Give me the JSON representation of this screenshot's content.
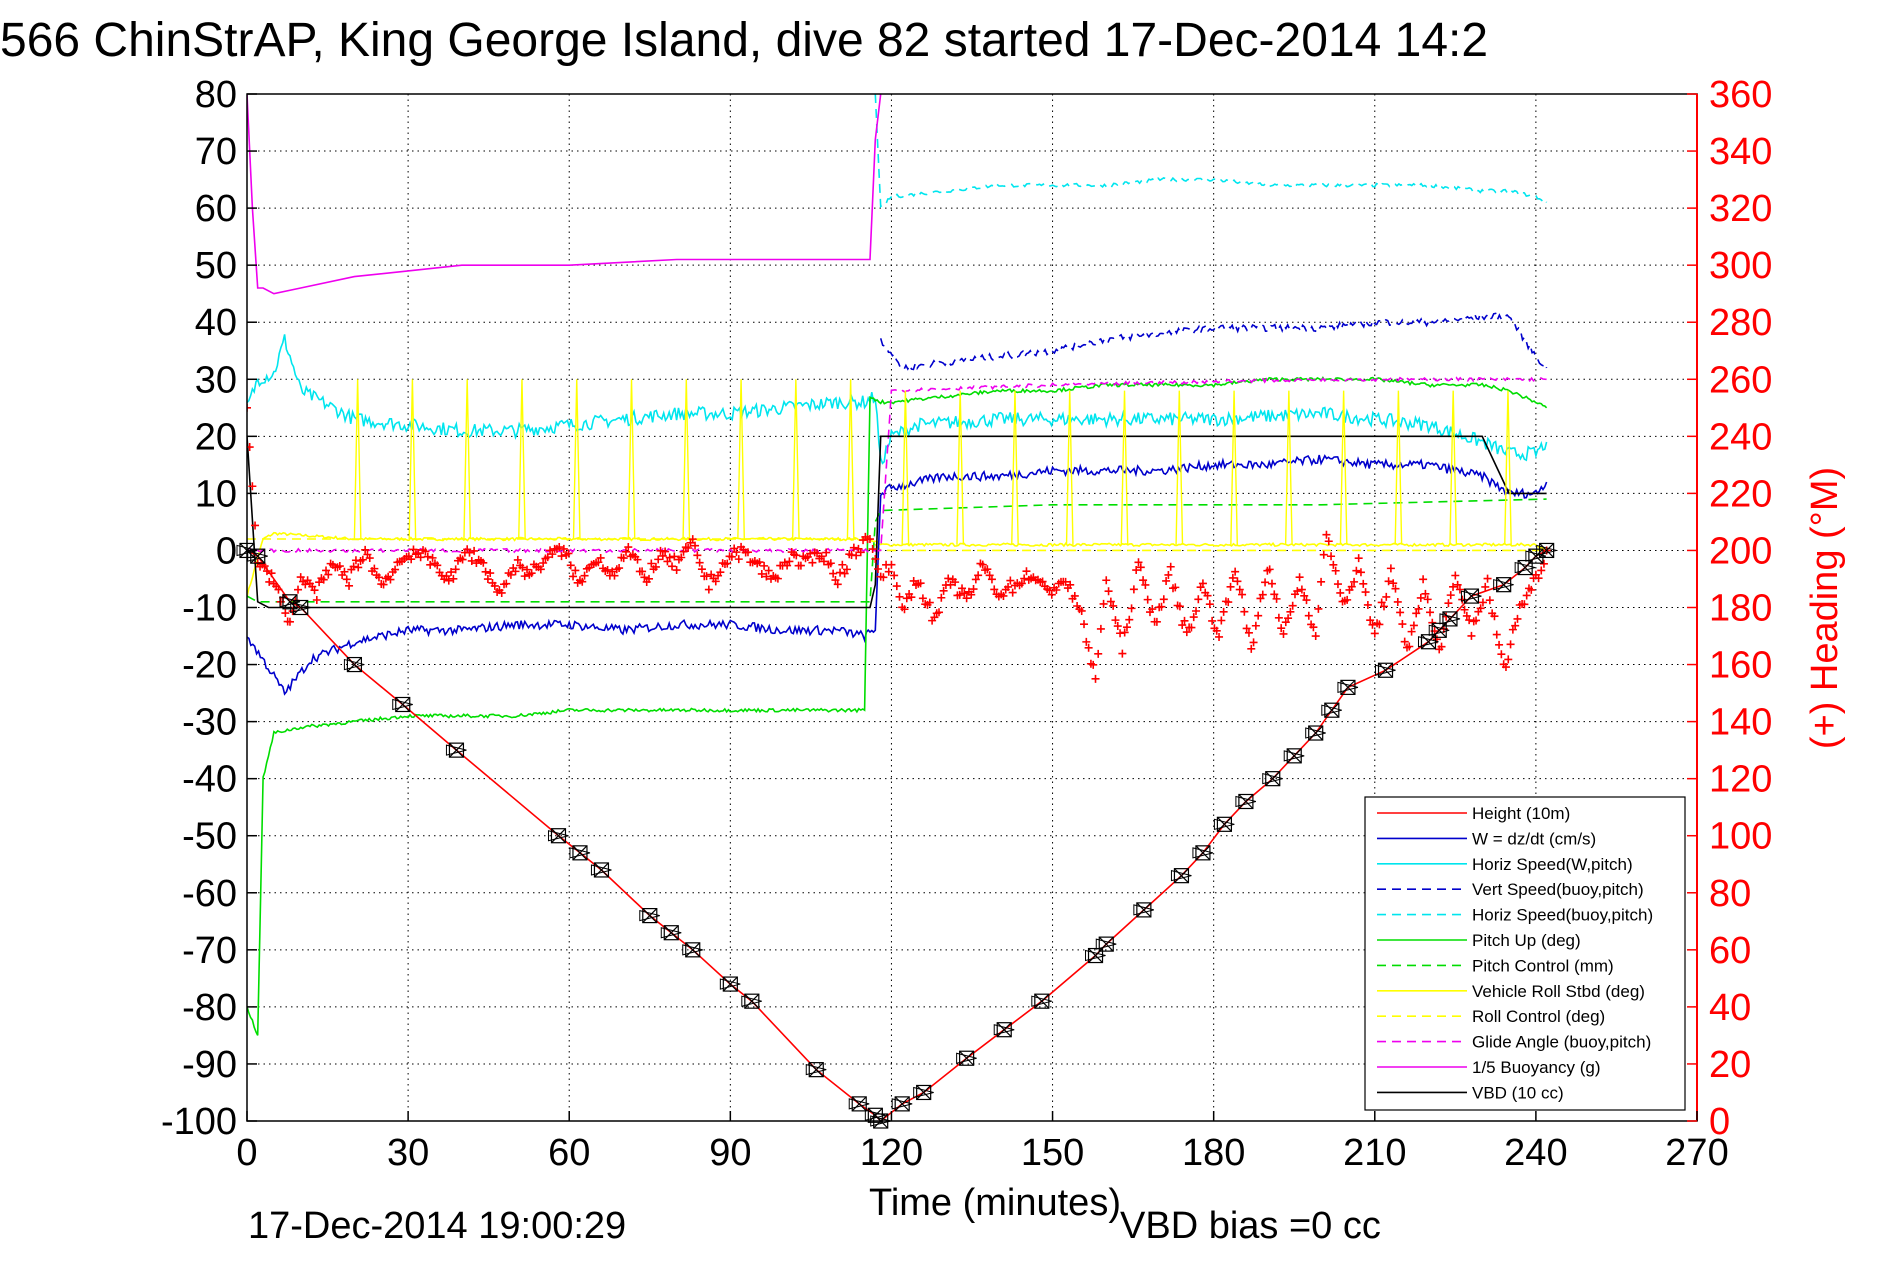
{
  "chart_data": {
    "type": "line",
    "title": "566 ChinStrAP, King George Island, dive 82 started 17-Dec-2014 14:2",
    "xlabel": "Time (minutes)",
    "ylabel_right": "(+) Heading (°M)",
    "xlim": [
      0,
      270
    ],
    "ylim": [
      -100,
      80
    ],
    "ylim_right": [
      0,
      360
    ],
    "x_ticks": [
      0,
      30,
      60,
      90,
      120,
      150,
      180,
      210,
      240,
      270
    ],
    "y_ticks": [
      80,
      70,
      60,
      50,
      40,
      30,
      20,
      10,
      0,
      -10,
      -20,
      -30,
      -40,
      -50,
      -60,
      -70,
      -80,
      -90,
      -100
    ],
    "y_ticks_right": [
      360,
      340,
      320,
      300,
      280,
      260,
      240,
      220,
      200,
      180,
      160,
      140,
      120,
      100,
      80,
      60,
      40,
      20,
      0
    ],
    "grid": true,
    "legend_position": "bottom-right",
    "footer_left": "17-Dec-2014 19:00:29",
    "footer_right": "VBD bias =0 cc",
    "colors": {
      "red": "#ff0000",
      "blue": "#0000cc",
      "cyan": "#00e5ee",
      "green": "#00dd00",
      "yellow": "#ffff00",
      "magenta": "#ee00ee",
      "black": "#000000"
    },
    "series": [
      {
        "name": "Height (10m)",
        "color": "#ff0000",
        "style": "solid",
        "marker": "x-box",
        "x": [
          0,
          2,
          8,
          10,
          20,
          29,
          39,
          58,
          62,
          66,
          75,
          79,
          83,
          90,
          94,
          106,
          114,
          117,
          118,
          122,
          126,
          134,
          141,
          148,
          158,
          160,
          167,
          174,
          178,
          182,
          186,
          191,
          195,
          199,
          202,
          205,
          212,
          220,
          222,
          224,
          228,
          234,
          238,
          240,
          242
        ],
        "y": [
          0,
          -1,
          -9,
          -10,
          -20,
          -27,
          -35,
          -50,
          -53,
          -56,
          -64,
          -67,
          -70,
          -76,
          -79,
          -91,
          -97,
          -99,
          -100,
          -97,
          -95,
          -89,
          -84,
          -79,
          -71,
          -69,
          -63,
          -57,
          -53,
          -48,
          -44,
          -40,
          -36,
          -32,
          -28,
          -24,
          -21,
          -16,
          -14,
          -12,
          -8,
          -6,
          -3,
          -1,
          0
        ]
      },
      {
        "name": "W = dz/dt (cm/s)",
        "color": "#0000cc",
        "style": "solid",
        "x": [
          0,
          5,
          7,
          12,
          20,
          30,
          40,
          50,
          60,
          70,
          80,
          90,
          100,
          110,
          115,
          117,
          118,
          120,
          125,
          130,
          140,
          150,
          160,
          170,
          180,
          190,
          200,
          210,
          220,
          230,
          235,
          240,
          242
        ],
        "y": [
          -15,
          -22,
          -25,
          -19,
          -16,
          -14,
          -14,
          -13,
          -13,
          -14,
          -13,
          -13,
          -14,
          -14,
          -15,
          -14,
          10,
          11,
          12,
          13,
          13,
          14,
          14,
          14,
          15,
          15,
          16,
          15,
          15,
          13,
          10,
          10,
          12
        ]
      },
      {
        "name": "Horiz Speed(W,pitch)",
        "color": "#00e5ee",
        "style": "solid",
        "x": [
          0,
          2,
          5,
          7,
          10,
          20,
          30,
          40,
          50,
          60,
          70,
          80,
          90,
          100,
          110,
          115,
          117,
          118,
          120,
          125,
          140,
          160,
          180,
          200,
          210,
          220,
          230,
          235,
          240,
          242
        ],
        "y": [
          25,
          30,
          31,
          37,
          28,
          23,
          22,
          21,
          21,
          22,
          23,
          24,
          24,
          25,
          26,
          26,
          27,
          15,
          20,
          22,
          23,
          23,
          23,
          24,
          23,
          22,
          19,
          17,
          17,
          19
        ]
      },
      {
        "name": "Vert Speed(buoy,pitch)",
        "color": "#0000cc",
        "style": "dashed",
        "x": [
          118,
          122,
          130,
          140,
          150,
          160,
          170,
          180,
          190,
          200,
          210,
          220,
          230,
          235,
          240,
          242
        ],
        "y": [
          37,
          32,
          33,
          34,
          35,
          37,
          38,
          39,
          39,
          39,
          40,
          40,
          41,
          41,
          34,
          32
        ]
      },
      {
        "name": "Horiz Speed(buoy,pitch)",
        "color": "#00e5ee",
        "style": "dashed",
        "x": [
          117,
          118,
          120,
          130,
          140,
          150,
          160,
          170,
          180,
          190,
          200,
          210,
          220,
          230,
          235,
          240,
          242
        ],
        "y": [
          80,
          60,
          62,
          63,
          64,
          64,
          64,
          65,
          65,
          64,
          64,
          64,
          64,
          63,
          63,
          62,
          61
        ]
      },
      {
        "name": "Pitch Up (deg)",
        "color": "#00dd00",
        "style": "solid",
        "x": [
          0,
          2,
          3,
          5,
          10,
          20,
          30,
          40,
          50,
          60,
          70,
          80,
          90,
          100,
          110,
          115,
          116,
          118,
          120,
          130,
          140,
          150,
          160,
          170,
          180,
          190,
          200,
          210,
          220,
          230,
          235,
          240,
          242
        ],
        "y": [
          -80,
          -85,
          -40,
          -32,
          -31,
          -30,
          -29,
          -29,
          -29,
          -28,
          -28,
          -28,
          -28,
          -28,
          -28,
          -28,
          27,
          26,
          26,
          27,
          28,
          28,
          29,
          29,
          29,
          30,
          30,
          30,
          29,
          29,
          28,
          26,
          25
        ]
      },
      {
        "name": "Pitch Control (mm)",
        "color": "#00dd00",
        "style": "dashed",
        "x": [
          0,
          2,
          5,
          116,
          117,
          118,
          150,
          200,
          242
        ],
        "y": [
          -8,
          -9,
          -9,
          -9,
          5,
          7,
          8,
          8,
          9
        ]
      },
      {
        "name": "Vehicle Roll Stbd (deg)",
        "color": "#ffff00",
        "style": "solid",
        "x": [
          0,
          3,
          5,
          20,
          40,
          60,
          80,
          100,
          116,
          118,
          130,
          150,
          170,
          190,
          210,
          230,
          240,
          242
        ],
        "y": [
          -8,
          2,
          3,
          2,
          2,
          2,
          2,
          2,
          2,
          1,
          1,
          1,
          1,
          1,
          1,
          1,
          1,
          0
        ]
      },
      {
        "name": "Roll Control (deg)",
        "color": "#ffff00",
        "style": "dashed",
        "x": [
          0,
          5,
          116,
          118,
          242
        ],
        "y": [
          2,
          2,
          2,
          0,
          0
        ]
      },
      {
        "name": "Glide Angle (buoy,pitch)",
        "color": "#ee00ee",
        "style": "dashed",
        "x": [
          0,
          5,
          118,
          120,
          150,
          200,
          242
        ],
        "y": [
          0,
          0,
          0,
          28,
          29,
          30,
          30
        ]
      },
      {
        "name": "1/5 Buoyancy (g)",
        "color": "#ee00ee",
        "style": "solid",
        "x": [
          0,
          1,
          2,
          3,
          5,
          10,
          20,
          30,
          40,
          60,
          80,
          100,
          116,
          117,
          118
        ],
        "y": [
          80,
          60,
          46,
          46,
          45,
          46,
          48,
          49,
          50,
          50,
          51,
          51,
          51,
          72,
          80
        ]
      },
      {
        "name": "VBD (10 cc)",
        "color": "#000000",
        "style": "solid",
        "x": [
          0,
          2,
          4,
          116,
          117,
          118,
          120,
          150,
          200,
          230,
          235,
          242
        ],
        "y": [
          20,
          -9,
          -10,
          -10,
          -6,
          20,
          20,
          20,
          20,
          20,
          10,
          10
        ]
      }
    ],
    "heading": {
      "name": "Heading",
      "axis": "right",
      "color": "#ff0000",
      "marker": "+",
      "x": [
        0,
        2,
        5,
        8,
        10,
        13,
        16,
        19,
        22,
        25,
        28,
        31,
        35,
        38,
        41,
        44,
        47,
        50,
        53,
        56,
        59,
        62,
        65,
        68,
        71,
        74,
        77,
        80,
        83,
        86,
        89,
        92,
        95,
        98,
        101,
        104,
        107,
        110,
        113,
        116,
        118,
        120,
        122,
        125,
        128,
        131,
        134,
        137,
        140,
        143,
        146,
        149,
        152,
        155,
        158,
        160,
        163,
        166,
        169,
        172,
        175,
        178,
        181,
        184,
        187,
        190,
        193,
        196,
        199,
        201,
        204,
        207,
        210,
        213,
        216,
        219,
        222,
        225,
        228,
        231,
        234,
        237,
        240,
        242
      ],
      "y": [
        250,
        195,
        190,
        175,
        190,
        185,
        195,
        190,
        200,
        188,
        195,
        200,
        195,
        190,
        200,
        195,
        185,
        195,
        192,
        198,
        200,
        188,
        198,
        192,
        200,
        190,
        198,
        195,
        202,
        188,
        196,
        200,
        195,
        190,
        198,
        195,
        200,
        190,
        200,
        204,
        190,
        195,
        180,
        190,
        175,
        190,
        182,
        195,
        185,
        188,
        192,
        185,
        190,
        180,
        155,
        190,
        165,
        195,
        175,
        192,
        170,
        188,
        170,
        195,
        165,
        195,
        170,
        190,
        170,
        208,
        180,
        195,
        170,
        192,
        165,
        188,
        165,
        190,
        172,
        188,
        158,
        180,
        190,
        200
      ]
    },
    "legend": [
      {
        "label": "Height (10m)",
        "color": "#ff0000",
        "style": "solid"
      },
      {
        "label": "W = dz/dt (cm/s)",
        "color": "#0000cc",
        "style": "solid"
      },
      {
        "label": "Horiz Speed(W,pitch)",
        "color": "#00e5ee",
        "style": "solid"
      },
      {
        "label": "Vert Speed(buoy,pitch)",
        "color": "#0000cc",
        "style": "dashed"
      },
      {
        "label": "Horiz Speed(buoy,pitch)",
        "color": "#00e5ee",
        "style": "dashed"
      },
      {
        "label": "Pitch Up (deg)",
        "color": "#00dd00",
        "style": "solid"
      },
      {
        "label": "Pitch Control (mm)",
        "color": "#00dd00",
        "style": "dashed"
      },
      {
        "label": "Vehicle Roll Stbd (deg)",
        "color": "#ffff00",
        "style": "solid"
      },
      {
        "label": "Roll Control (deg)",
        "color": "#ffff00",
        "style": "dashed"
      },
      {
        "label": "Glide Angle (buoy,pitch)",
        "color": "#ee00ee",
        "style": "dashed"
      },
      {
        "label": "1/5 Buoyancy (g)",
        "color": "#ee00ee",
        "style": "solid"
      },
      {
        "label": "VBD (10 cc)",
        "color": "#000000",
        "style": "solid"
      }
    ]
  }
}
